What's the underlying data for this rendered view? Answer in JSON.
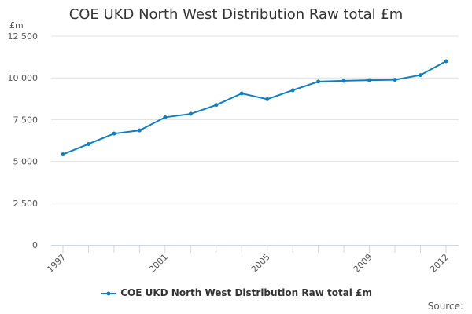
{
  "chart_data": {
    "type": "line",
    "title": "COE UKD North West Distribution Raw total £m",
    "ylabel": "£m",
    "xlabel": "",
    "ylim": [
      0,
      12500
    ],
    "yticks": [
      0,
      2500,
      5000,
      7500,
      10000,
      12500
    ],
    "ytick_labels": [
      "0",
      "2 500",
      "5 000",
      "7 500",
      "10 000",
      "12 500"
    ],
    "xtick_labels": [
      "1997",
      "2001",
      "2005",
      "2009",
      "2012"
    ],
    "x": [
      1997,
      1998,
      1999,
      2000,
      2001,
      2002,
      2003,
      2004,
      2005,
      2006,
      2007,
      2008,
      2009,
      2010,
      2011,
      2012
    ],
    "series": [
      {
        "name": "COE UKD North West Distribution Raw total £m",
        "color": "#0d7fc4",
        "values": [
          5425,
          6040,
          6665,
          6855,
          7640,
          7845,
          8375,
          9070,
          8725,
          9260,
          9780,
          9825,
          9860,
          9885,
          10170,
          10995
        ]
      }
    ],
    "grid": true,
    "legend": "bottom",
    "source": "Source:"
  }
}
